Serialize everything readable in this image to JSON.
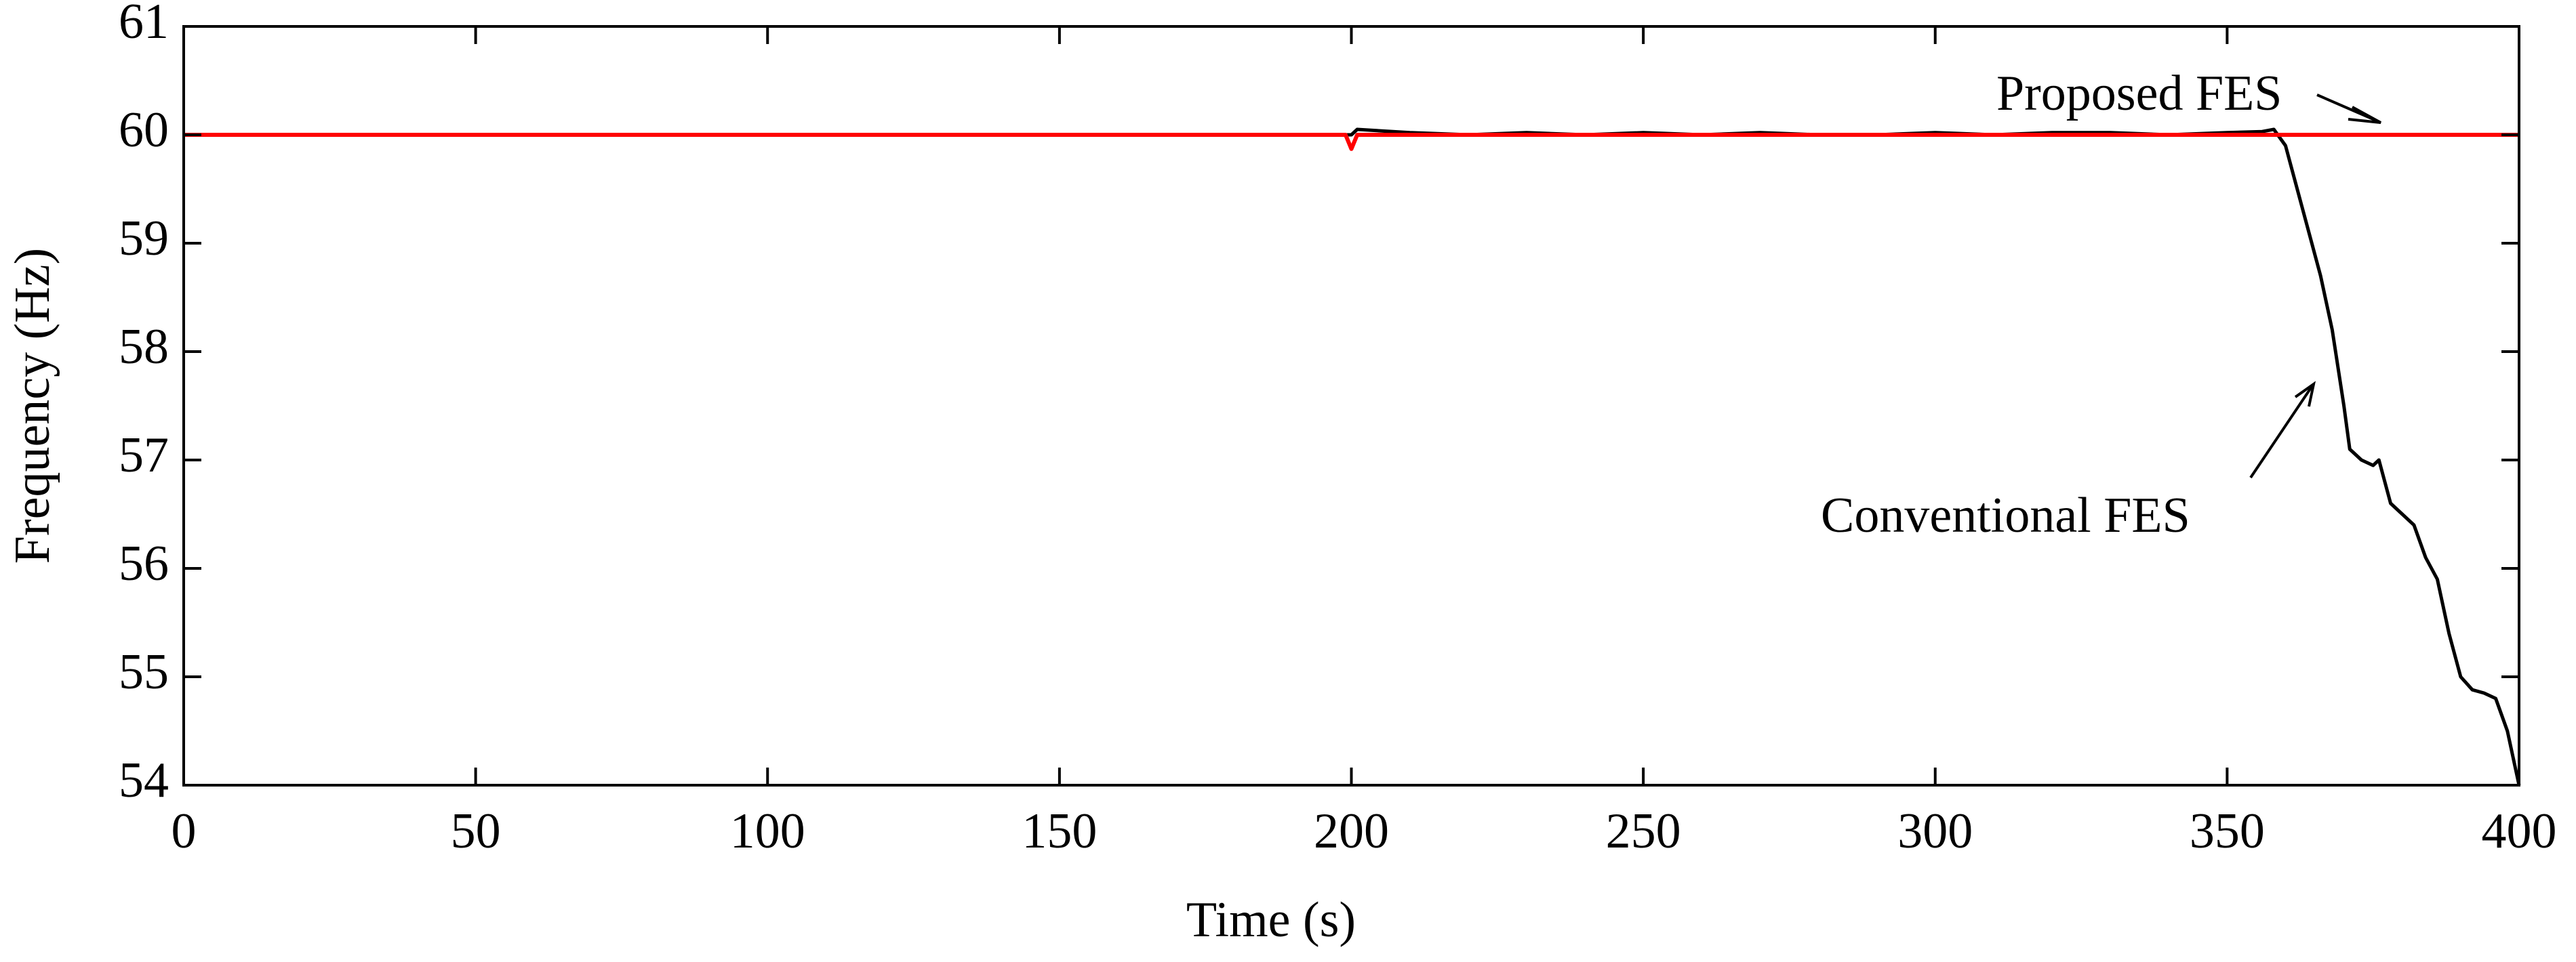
{
  "chart_data": {
    "type": "line",
    "xlabel": "Time (s)",
    "ylabel": "Frequency (Hz)",
    "x": [
      0,
      100,
      199,
      200,
      201,
      210,
      220,
      230,
      240,
      250,
      260,
      270,
      280,
      290,
      300,
      310,
      320,
      330,
      340,
      350,
      356,
      358,
      360,
      363,
      366,
      368,
      370,
      371,
      373,
      375,
      376,
      378,
      380,
      382,
      384,
      386,
      388,
      390,
      392,
      394,
      396,
      398,
      400
    ],
    "series": [
      {
        "name": "Conventional FES",
        "color": "#000000",
        "values": [
          60,
          60,
          60,
          60.0,
          60.05,
          60.02,
          60.0,
          60.02,
          60.0,
          60.02,
          60.0,
          60.02,
          60.0,
          60.0,
          60.02,
          60.0,
          60.02,
          60.02,
          60.0,
          60.02,
          60.03,
          60.05,
          59.9,
          59.3,
          58.7,
          58.2,
          57.5,
          57.1,
          57.0,
          56.95,
          57.0,
          56.6,
          56.5,
          56.4,
          56.1,
          55.9,
          55.4,
          55.0,
          54.88,
          54.85,
          54.8,
          54.5,
          54.0
        ]
      },
      {
        "name": "Proposed FES",
        "color": "#ff0000",
        "values": [
          60,
          60,
          60,
          59.87,
          60,
          60,
          60,
          60,
          60,
          60,
          60,
          60,
          60,
          60,
          60,
          60,
          60,
          60,
          60,
          60,
          60,
          60,
          60,
          60,
          60,
          60,
          60,
          60,
          60,
          60,
          60,
          60,
          60,
          60,
          60,
          60,
          60,
          60,
          60,
          60,
          60,
          60,
          60
        ]
      }
    ],
    "xlim": [
      0,
      400
    ],
    "xticks": [
      0,
      50,
      100,
      150,
      200,
      250,
      300,
      350,
      400
    ],
    "ylim": [
      54,
      61
    ],
    "yticks": [
      54,
      55,
      56,
      57,
      58,
      59,
      60,
      61
    ]
  }
}
